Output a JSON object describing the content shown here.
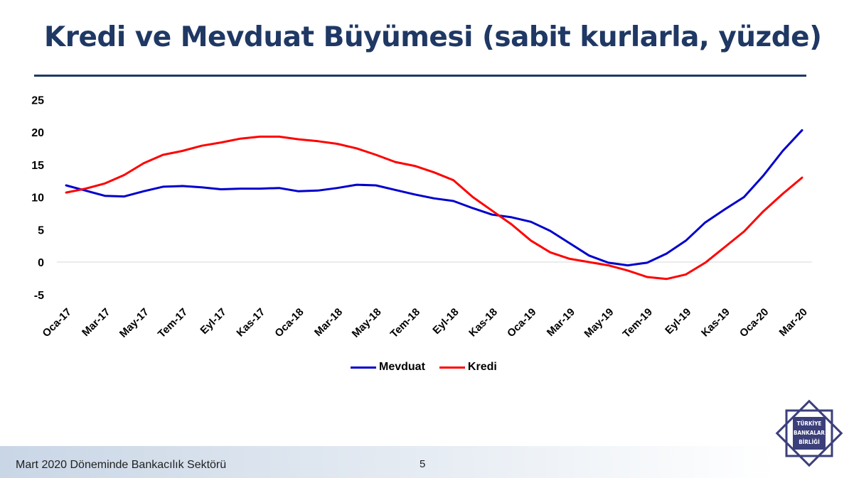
{
  "header": {
    "title": "Kredi ve Mevduat Büyümesi (sabit kurlarla, yüzde)"
  },
  "chart_data": {
    "type": "line",
    "title": "",
    "xlabel": "",
    "ylabel": "",
    "ylim": [
      -5,
      25
    ],
    "yticks": [
      25,
      20,
      15,
      10,
      5,
      0,
      -5
    ],
    "grid": false,
    "legend_position": "bottom",
    "x": [
      "Oca-17",
      "Şub-17",
      "Mar-17",
      "Nis-17",
      "May-17",
      "Haz-17",
      "Tem-17",
      "Ağu-17",
      "Eyl-17",
      "Eki-17",
      "Kas-17",
      "Ara-17",
      "Oca-18",
      "Şub-18",
      "Mar-18",
      "Nis-18",
      "May-18",
      "Haz-18",
      "Tem-18",
      "Ağu-18",
      "Eyl-18",
      "Eki-18",
      "Kas-18",
      "Ara-18",
      "Oca-19",
      "Şub-19",
      "Mar-19",
      "Nis-19",
      "May-19",
      "Haz-19",
      "Tem-19",
      "Ağu-19",
      "Eyl-19",
      "Eki-19",
      "Kas-19",
      "Ara-19",
      "Oca-20",
      "Şub-20",
      "Mar-20"
    ],
    "xtick_labels": [
      "Oca-17",
      "Mar-17",
      "May-17",
      "Tem-17",
      "Eyl-17",
      "Kas-17",
      "Oca-18",
      "Mar-18",
      "May-18",
      "Tem-18",
      "Eyl-18",
      "Kas-18",
      "Oca-19",
      "Mar-19",
      "May-19",
      "Tem-19",
      "Eyl-19",
      "Kas-19",
      "Oca-20",
      "Mar-20"
    ],
    "series": [
      {
        "name": "Mevduat",
        "color": "#0000cc",
        "values": [
          11.8,
          11.0,
          10.2,
          10.1,
          10.9,
          11.6,
          11.7,
          11.5,
          11.2,
          11.3,
          11.3,
          11.4,
          10.9,
          11.0,
          11.4,
          11.9,
          11.8,
          11.1,
          10.4,
          9.8,
          9.4,
          8.3,
          7.3,
          6.9,
          6.2,
          4.8,
          2.9,
          1.0,
          -0.1,
          -0.5,
          -0.1,
          1.3,
          3.3,
          6.1,
          8.1,
          10.0,
          13.3,
          17.1,
          20.3
        ]
      },
      {
        "name": "Kredi",
        "color": "#ff0000",
        "values": [
          10.7,
          11.3,
          12.1,
          13.4,
          15.2,
          16.5,
          17.1,
          17.9,
          18.4,
          19.0,
          19.3,
          19.3,
          18.9,
          18.6,
          18.2,
          17.5,
          16.5,
          15.4,
          14.8,
          13.8,
          12.6,
          10.0,
          7.9,
          5.8,
          3.3,
          1.5,
          0.5,
          0.0,
          -0.5,
          -1.3,
          -2.3,
          -2.6,
          -1.9,
          -0.1,
          2.3,
          4.7,
          7.8,
          10.5,
          13.0
        ]
      }
    ]
  },
  "footer": {
    "text": "Mart 2020 Döneminde Bankacılık Sektörü",
    "page": "5"
  },
  "logo": {
    "lines": [
      "TÜRKİYE",
      "BANKALAR",
      "BİRLİĞİ"
    ]
  },
  "colors": {
    "title": "#1f3864",
    "mevduat": "#0000cc",
    "kredi": "#ff0000"
  }
}
